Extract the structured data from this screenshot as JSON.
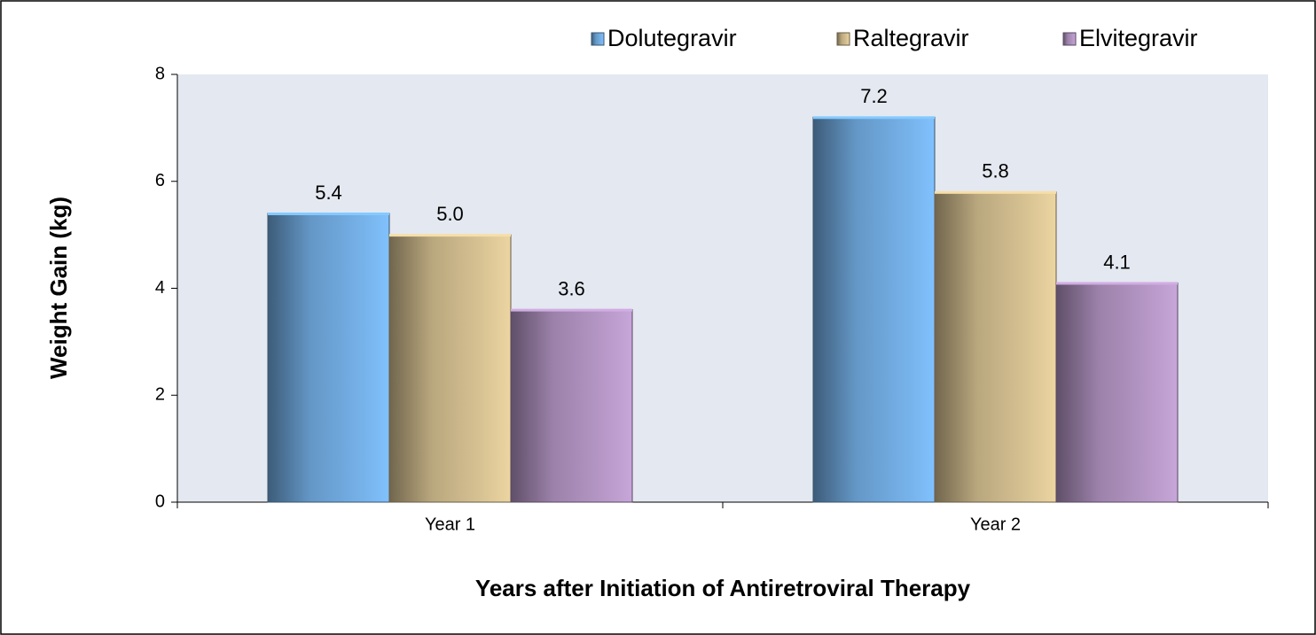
{
  "chart_data": {
    "type": "bar",
    "x_label": "Years after Initiation of Antiretroviral Therapy",
    "y_label": "Weight Gain (kg)",
    "categories": [
      "Year 1",
      "Year 2"
    ],
    "series": [
      {
        "name": "Dolutegravir",
        "color": "#6fa8dc",
        "values": [
          5.4,
          7.2
        ],
        "value_labels": [
          "5.4",
          "7.2"
        ]
      },
      {
        "name": "Raltegravir",
        "color": "#cdb98c",
        "values": [
          5.0,
          5.8
        ],
        "value_labels": [
          "5.0",
          "5.8"
        ]
      },
      {
        "name": "Elvitegravir",
        "color": "#ad90bd",
        "values": [
          3.6,
          4.1
        ],
        "value_labels": [
          "3.6",
          "4.1"
        ]
      }
    ],
    "ylim": [
      0,
      8
    ],
    "yticks": [
      0,
      2,
      4,
      6,
      8
    ],
    "grid": false
  }
}
